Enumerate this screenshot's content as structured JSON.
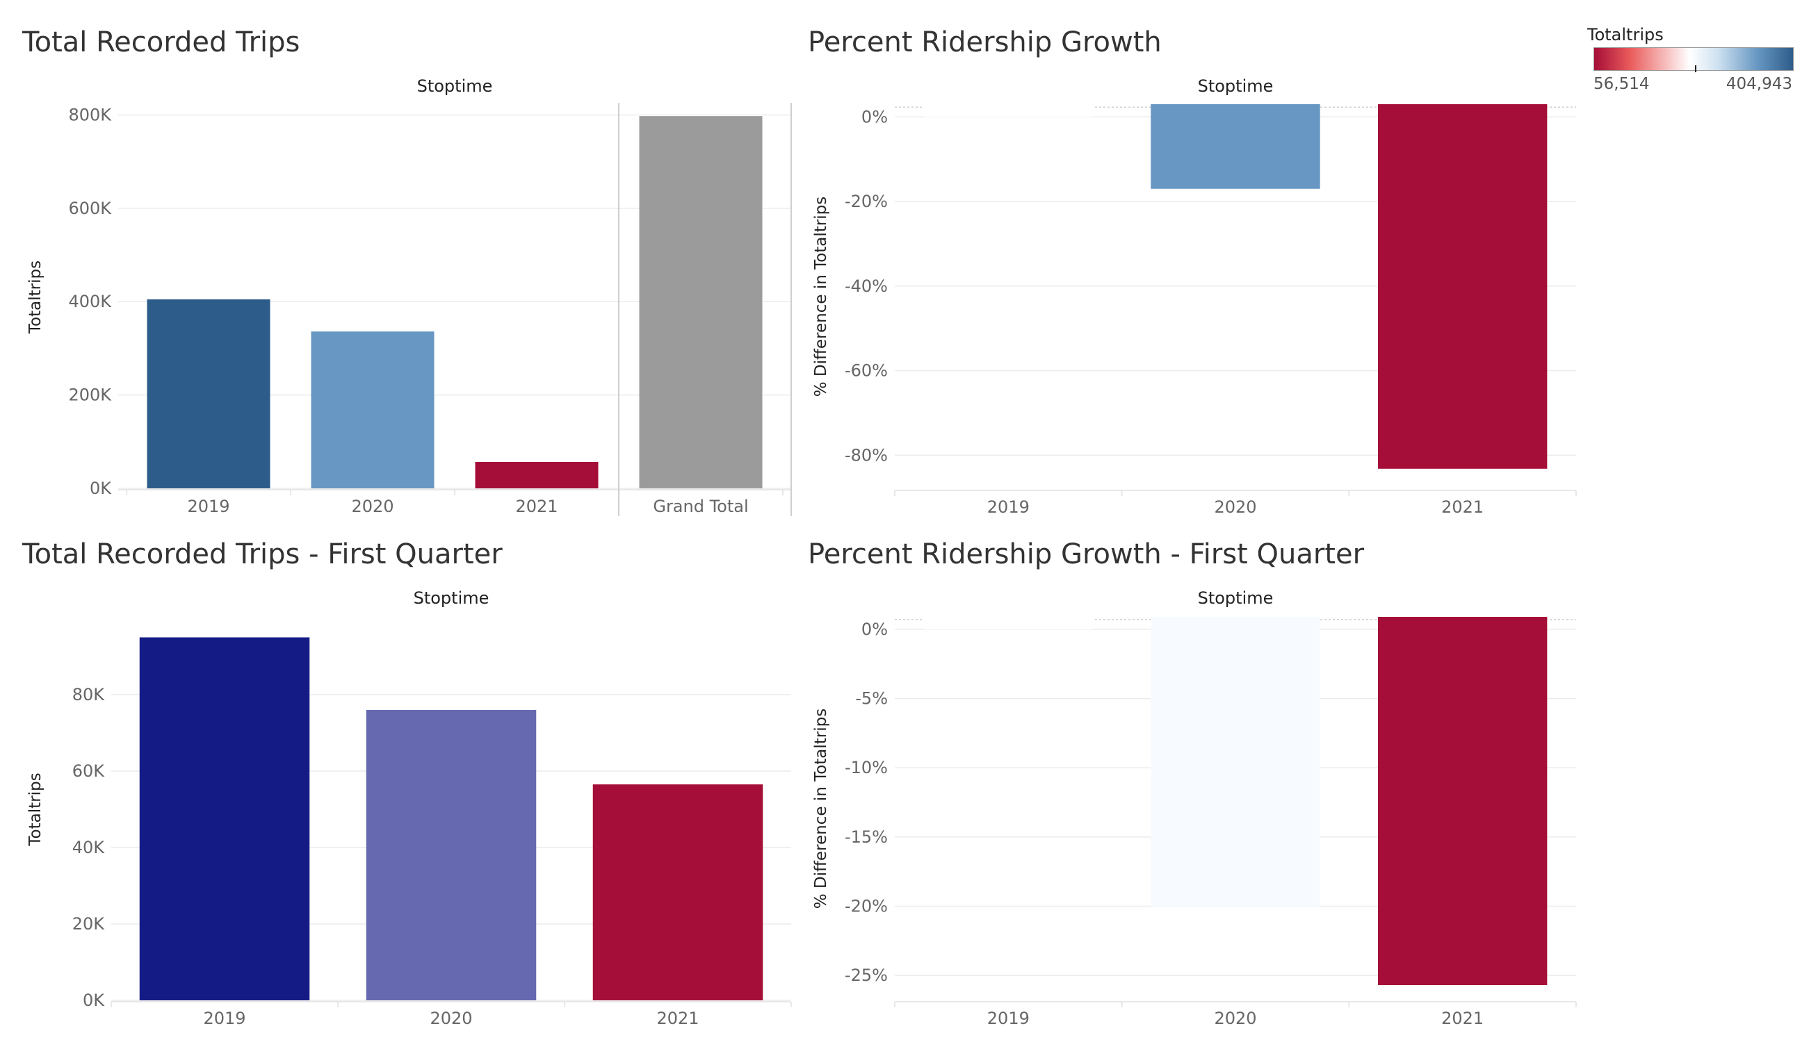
{
  "legend": {
    "title": "Totaltrips",
    "min_label": "56,514",
    "max_label": "404,943",
    "min_value": 56514,
    "max_value": 404943,
    "colors": [
      "#a50e38",
      "#ffffff",
      "#2e5c8a"
    ]
  },
  "chart_data": [
    {
      "id": "total-trips",
      "type": "bar",
      "title": "Total Recorded Trips",
      "header": "Stoptime",
      "xlabel": "",
      "ylabel": "Totaltrips",
      "categories": [
        "2019",
        "2020",
        "2021",
        "Grand Total"
      ],
      "values": [
        404943,
        336000,
        56514,
        797457
      ],
      "colors": [
        "#2e5c8a",
        "#6797c2",
        "#a50e38",
        "#9b9b9b"
      ],
      "ylim": [
        0,
        820000
      ],
      "yticks": [
        0,
        200000,
        400000,
        600000,
        800000
      ],
      "ytick_labels": [
        "0K",
        "200K",
        "400K",
        "600K",
        "800K"
      ],
      "grid": true,
      "legend": "none"
    },
    {
      "id": "percent-growth",
      "type": "bar",
      "title": "Percent Ridership Growth",
      "header": "Stoptime",
      "xlabel": "",
      "ylabel": "% Difference in Totaltrips",
      "categories": [
        "2019",
        "2020",
        "2021"
      ],
      "values": [
        0,
        -17,
        -83.2
      ],
      "colors": [
        "#ffffff",
        "#6797c2",
        "#a50e38"
      ],
      "ylim": [
        -88,
        3
      ],
      "yticks": [
        0,
        -20,
        -40,
        -60,
        -80
      ],
      "ytick_labels": [
        "0%",
        "-20%",
        "-40%",
        "-60%",
        "-80%"
      ],
      "grid": true,
      "legend": "top-right"
    },
    {
      "id": "q1-trips",
      "type": "bar",
      "title": "Total Recorded Trips - First Quarter",
      "header": "Stoptime",
      "xlabel": "",
      "ylabel": "Totaltrips",
      "categories": [
        "2019",
        "2020",
        "2021"
      ],
      "values": [
        95000,
        76000,
        56514
      ],
      "colors": [
        "#151b85",
        "#6669b0",
        "#a50e38"
      ],
      "ylim": [
        0,
        100000
      ],
      "yticks": [
        0,
        20000,
        40000,
        60000,
        80000
      ],
      "ytick_labels": [
        "0K",
        "20K",
        "40K",
        "60K",
        "80K"
      ],
      "grid": true,
      "legend": "none"
    },
    {
      "id": "q1-growth",
      "type": "bar",
      "title": "Percent Ridership Growth - First Quarter",
      "header": "Stoptime",
      "xlabel": "",
      "ylabel": "% Difference in Totaltrips",
      "categories": [
        "2019",
        "2020",
        "2021"
      ],
      "values": [
        0,
        -20,
        -25.7
      ],
      "colors": [
        "#ffffff",
        "#f7fbff",
        "#a50e38"
      ],
      "ylim": [
        -26.8,
        0.9
      ],
      "yticks": [
        0,
        -5,
        -10,
        -15,
        -20,
        -25
      ],
      "ytick_labels": [
        "0%",
        "-5%",
        "-10%",
        "-15%",
        "-20%",
        "-25%"
      ],
      "grid": true,
      "legend": "none"
    }
  ]
}
